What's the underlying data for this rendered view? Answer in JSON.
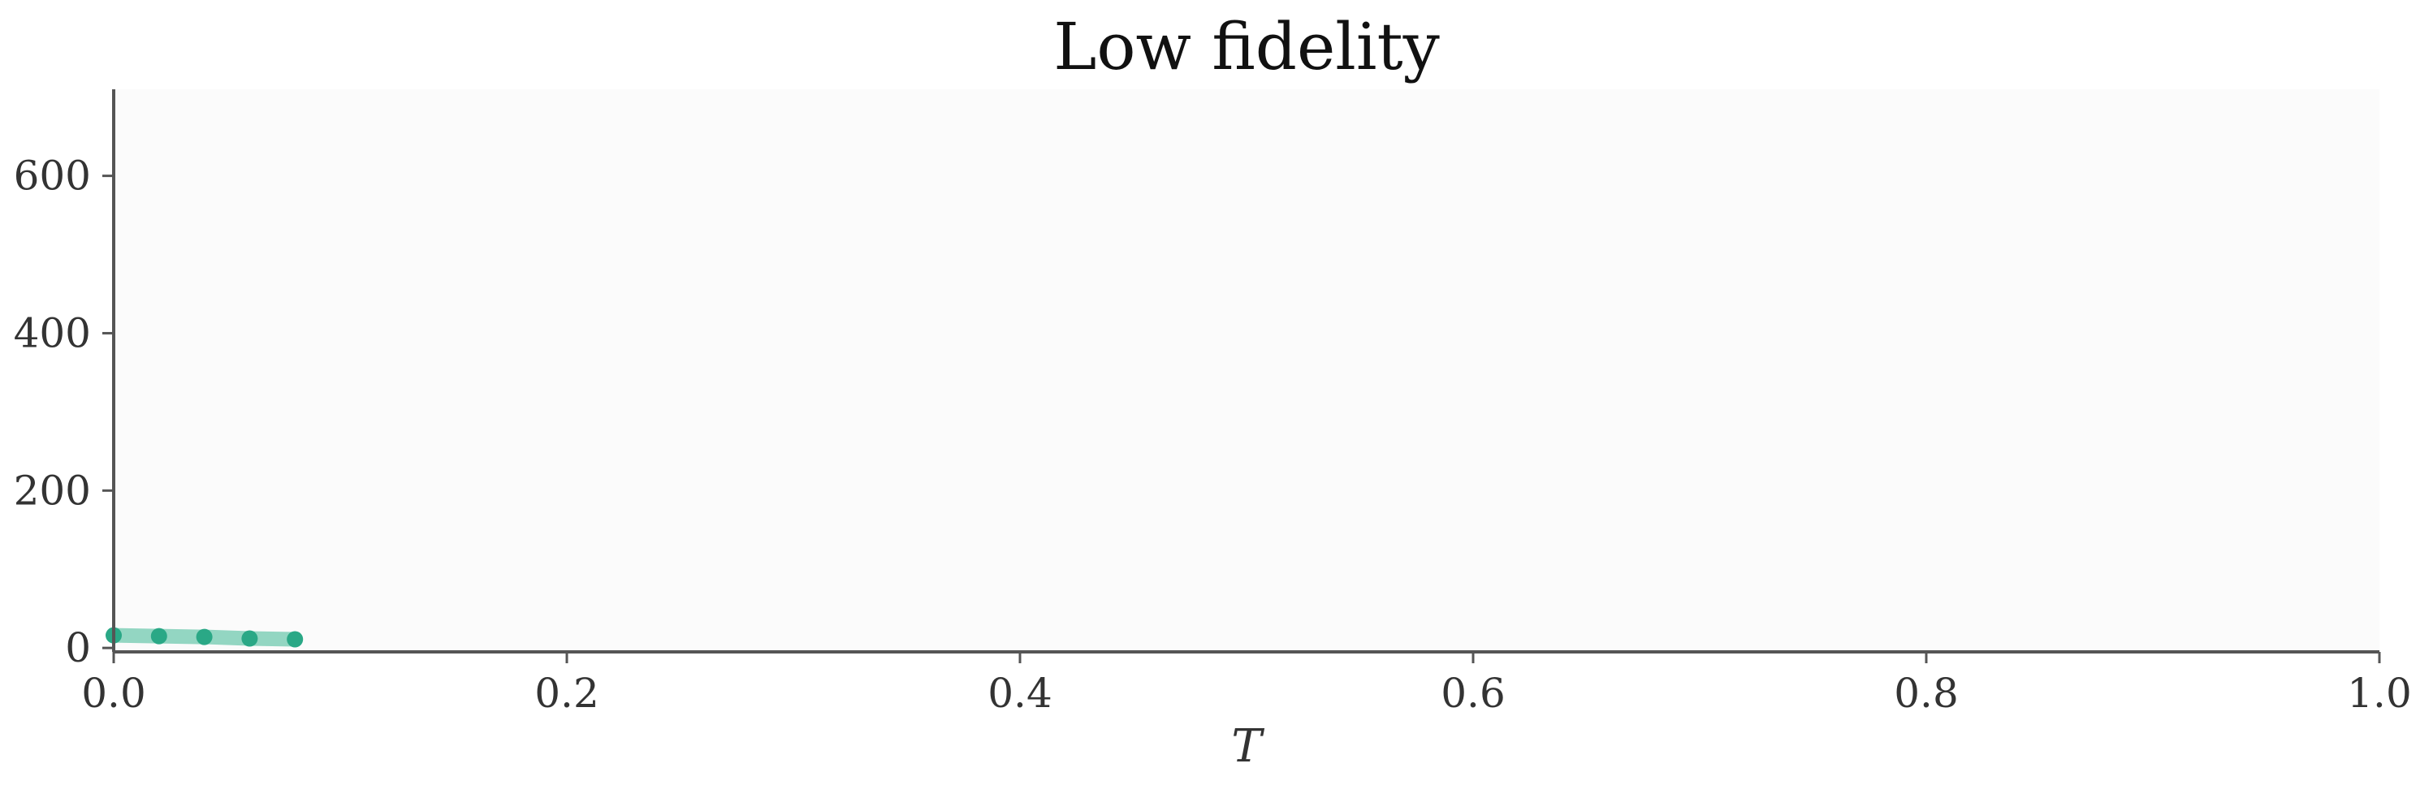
{
  "chart_data": {
    "type": "line",
    "title": "Low fidelity",
    "xlabel": "T",
    "ylabel": "",
    "xlim": [
      0.0,
      1.0
    ],
    "ylim": [
      -5,
      710
    ],
    "xticks": [
      0.0,
      0.2,
      0.4,
      0.6,
      0.8,
      1.0
    ],
    "xtick_labels": [
      "0.0",
      "0.2",
      "0.4",
      "0.6",
      "0.8",
      "1.0"
    ],
    "yticks": [
      0,
      200,
      400,
      600
    ],
    "ytick_labels": [
      "0",
      "200",
      "400",
      "600"
    ],
    "grid": false,
    "series": [
      {
        "x": [
          0.0,
          0.02,
          0.04,
          0.06,
          0.08
        ],
        "y": [
          16,
          15,
          14,
          12,
          11
        ],
        "color": "#2aa886",
        "line_color": "#93d6c2"
      }
    ],
    "background": "#fbfbfb",
    "axis_color": "#555555"
  }
}
